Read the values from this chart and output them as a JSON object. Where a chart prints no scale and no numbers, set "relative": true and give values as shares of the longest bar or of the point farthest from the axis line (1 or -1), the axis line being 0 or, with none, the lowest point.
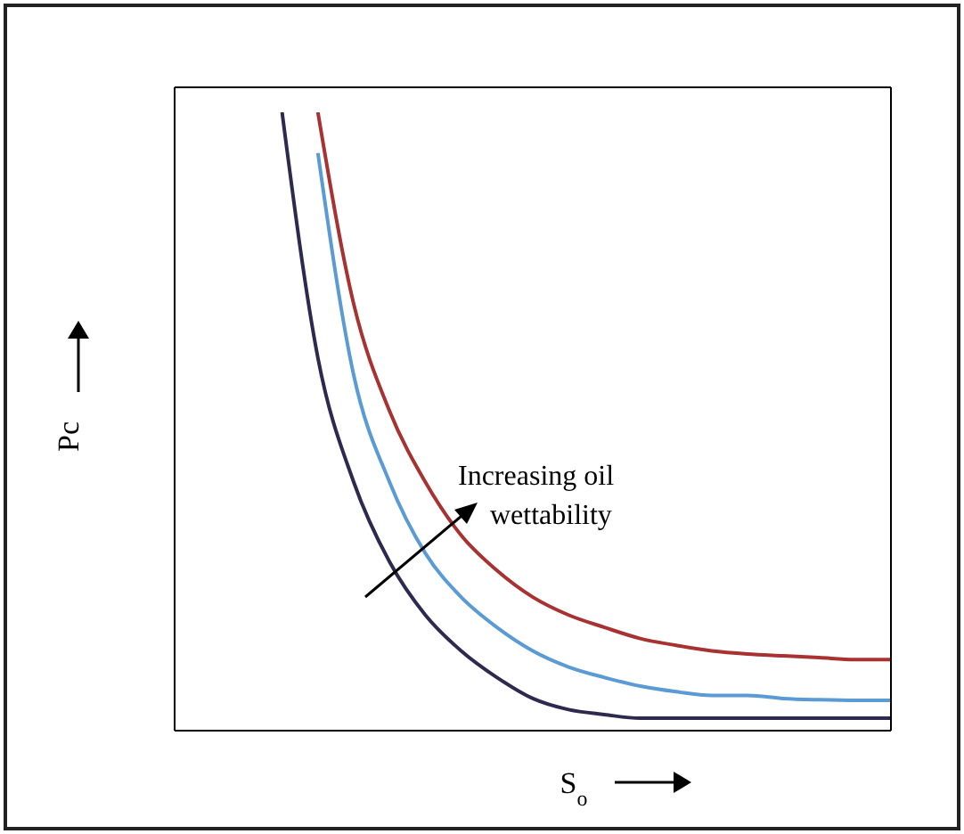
{
  "chart_data": {
    "type": "line",
    "relative": true,
    "xlabel": "S$_{o}$",
    "ylabel": "Pc",
    "annotations": [
      "Increasing oil wettability"
    ],
    "categories": [
      null,
      null,
      null,
      null,
      null,
      null,
      null,
      null,
      null,
      null,
      null,
      null,
      null,
      null,
      null,
      null,
      null,
      null,
      null,
      null,
      null
    ],
    "series": [
      {
        "color": "#2e2a4f",
        "values": [
          null,
          null,
          null,
          1,
          0.603,
          0.402,
          0.273,
          0.187,
          0.129,
          0.086,
          0.052,
          0.034,
          0.026,
          0.02,
          0.02,
          0.02,
          0.02,
          0.02,
          0.02,
          0.02,
          0.02
        ]
      },
      {
        "color": "#5b9bd5",
        "values": [
          null,
          null,
          null,
          null,
          0.934,
          0.575,
          0.402,
          0.287,
          0.216,
          0.167,
          0.129,
          0.103,
          0.086,
          0.072,
          0.063,
          0.057,
          0.057,
          0.052,
          0.05,
          0.049,
          0.049
        ]
      },
      {
        "color": "#a83232",
        "values": [
          null,
          null,
          null,
          null,
          1,
          0.69,
          0.517,
          0.402,
          0.316,
          0.259,
          0.216,
          0.187,
          0.167,
          0.149,
          0.138,
          0.129,
          0.124,
          0.121,
          0.118,
          0.115,
          0.115
        ]
      }
    ],
    "legend": false,
    "grid": false,
    "marker": "none",
    "line_style": "solid"
  }
}
